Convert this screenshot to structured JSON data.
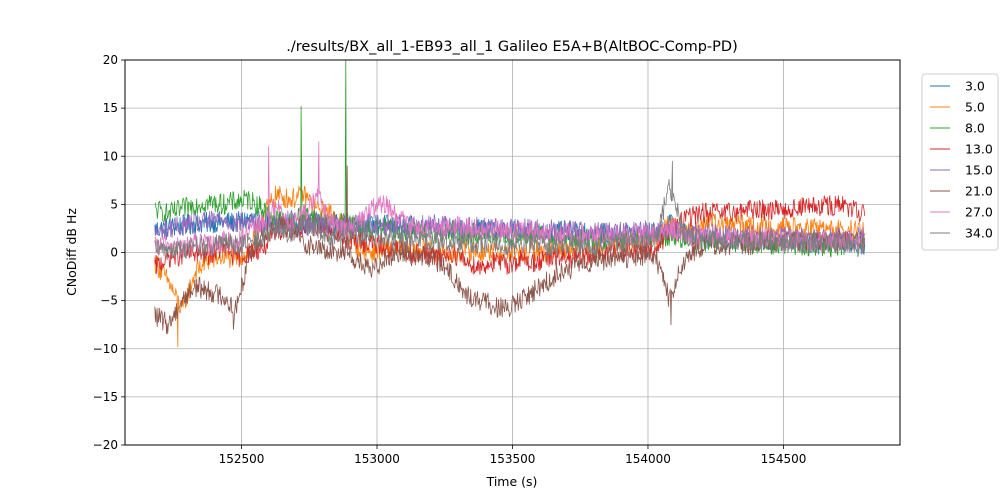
{
  "chart_data": {
    "type": "line",
    "title": "./results/BX_all_1-EB93_all_1 Galileo E5A+B(AltBOC-Comp-PD)",
    "xlabel": "Time (s)",
    "ylabel": "CNoDiff dB Hz",
    "xlim": [
      152070,
      154930
    ],
    "ylim": [
      -20,
      20
    ],
    "x_ticks": [
      152500,
      153000,
      153500,
      154000,
      154500
    ],
    "x_tick_labels": [
      "152500",
      "153000",
      "153500",
      "154000",
      "154500"
    ],
    "y_ticks": [
      -20,
      -15,
      -10,
      -5,
      0,
      5,
      10,
      15,
      20
    ],
    "y_tick_labels": [
      "−20",
      "−15",
      "−10",
      "−5",
      "0",
      "5",
      "10",
      "15",
      "20"
    ],
    "grid": true,
    "legend_position": "outside-right-top",
    "x": [
      152180,
      152230,
      152280,
      152330,
      152380,
      152430,
      152480,
      152530,
      152580,
      152630,
      152680,
      152730,
      152780,
      152830,
      152880,
      152930,
      152980,
      153030,
      153080,
      153130,
      153180,
      153230,
      153280,
      153330,
      153380,
      153430,
      153480,
      153530,
      153580,
      153630,
      153680,
      153730,
      153780,
      153830,
      153880,
      153930,
      153980,
      154030,
      154080,
      154130,
      154180,
      154230,
      154280,
      154330,
      154380,
      154430,
      154480,
      154530,
      154580,
      154630,
      154680,
      154730,
      154800
    ],
    "series": [
      {
        "name": "3.0",
        "color": "#1f77b4",
        "values": [
          2.4,
          2.6,
          2.8,
          3.0,
          3.1,
          3.2,
          3.1,
          3.5,
          3.2,
          2.8,
          3.4,
          2.9,
          3.1,
          2.8,
          3.0,
          2.6,
          2.8,
          2.9,
          2.6,
          2.7,
          2.5,
          2.6,
          2.4,
          2.2,
          2.5,
          2.3,
          2.2,
          2.4,
          2.1,
          2.0,
          2.2,
          2.1,
          1.9,
          2.0,
          1.8,
          1.9,
          2.0,
          2.1,
          3.0,
          2.0,
          1.6,
          1.5,
          1.4,
          1.3,
          1.5,
          1.2,
          1.0,
          1.4,
          1.1,
          0.9,
          1.2,
          1.0,
          0.8
        ]
      },
      {
        "name": "5.0",
        "color": "#ff7f0e",
        "values": [
          -1.0,
          -3.0,
          -6.0,
          -2.0,
          -0.8,
          -0.5,
          -0.6,
          0.0,
          4.0,
          6.0,
          5.5,
          6.0,
          4.5,
          4.0,
          3.0,
          0.5,
          0.0,
          0.5,
          0.3,
          0.2,
          0.5,
          0.0,
          -0.2,
          0.3,
          0.0,
          0.2,
          0.0,
          -0.3,
          0.2,
          0.0,
          0.4,
          0.5,
          0.3,
          0.6,
          0.8,
          1.0,
          1.0,
          1.2,
          3.0,
          1.5,
          3.0,
          3.2,
          2.8,
          3.0,
          2.6,
          2.8,
          2.5,
          2.6,
          2.4,
          2.6,
          2.3,
          2.4,
          2.0
        ]
      },
      {
        "name": "8.0",
        "color": "#2ca02c",
        "values": [
          4.5,
          4.0,
          4.5,
          5.0,
          5.2,
          5.0,
          5.3,
          5.5,
          4.5,
          3.5,
          3.0,
          4.0,
          3.5,
          3.0,
          3.2,
          2.8,
          2.5,
          2.5,
          2.3,
          2.2,
          2.0,
          2.0,
          2.2,
          1.9,
          1.8,
          1.9,
          1.7,
          1.6,
          1.8,
          1.5,
          1.6,
          1.4,
          1.5,
          1.3,
          1.4,
          1.2,
          1.3,
          1.5,
          1.8,
          1.4,
          1.2,
          1.0,
          1.1,
          1.0,
          0.9,
          1.0,
          0.8,
          0.9,
          0.7,
          0.8,
          0.6,
          0.7,
          0.6
        ]
      },
      {
        "name": "13.0",
        "color": "#d62728",
        "values": [
          -1.5,
          -0.5,
          -0.3,
          0.0,
          -0.2,
          0.5,
          -0.5,
          0.0,
          0.5,
          2.0,
          3.0,
          2.5,
          2.8,
          2.0,
          1.5,
          1.2,
          1.0,
          0.5,
          0.3,
          0.0,
          -0.2,
          -0.5,
          0.0,
          -1.0,
          -1.5,
          -1.0,
          -1.2,
          -0.8,
          -1.0,
          -0.7,
          -0.5,
          -0.6,
          -0.4,
          0.0,
          0.2,
          0.0,
          0.4,
          0.3,
          2.0,
          3.5,
          4.0,
          4.2,
          4.0,
          4.3,
          4.5,
          4.4,
          4.6,
          4.5,
          4.8,
          4.7,
          4.9,
          4.8,
          3.8
        ]
      },
      {
        "name": "15.0",
        "color": "#9467bd",
        "values": [
          2.0,
          2.5,
          2.8,
          3.0,
          3.2,
          3.5,
          3.0,
          3.2,
          2.8,
          3.0,
          2.5,
          2.8,
          3.2,
          3.0,
          2.7,
          3.0,
          3.1,
          2.8,
          3.0,
          2.7,
          2.8,
          2.9,
          2.5,
          2.6,
          2.7,
          2.4,
          2.5,
          2.6,
          2.3,
          2.4,
          2.2,
          2.5,
          2.1,
          2.2,
          2.0,
          2.1,
          2.3,
          2.0,
          2.5,
          2.2,
          1.8,
          2.0,
          1.9,
          1.7,
          1.8,
          1.6,
          1.7,
          1.5,
          1.6,
          1.4,
          1.5,
          1.6,
          1.5
        ]
      },
      {
        "name": "21.0",
        "color": "#8c564b",
        "values": [
          -6.5,
          -7.5,
          -5.0,
          -3.5,
          -4.0,
          -4.5,
          -6.0,
          0.0,
          2.0,
          3.0,
          2.5,
          1.0,
          0.5,
          0.0,
          0.3,
          -1.0,
          -2.0,
          -0.5,
          0.0,
          -0.3,
          -0.5,
          -1.0,
          -2.5,
          -4.5,
          -5.0,
          -5.5,
          -6.0,
          -5.0,
          -4.0,
          -3.0,
          -2.0,
          -1.5,
          -1.0,
          -0.8,
          -0.5,
          -0.6,
          -0.3,
          -0.5,
          -5.0,
          -1.0,
          0.5,
          0.8,
          0.6,
          1.0,
          0.8,
          1.1,
          0.9,
          1.2,
          1.0,
          1.3,
          1.1,
          1.2,
          1.0
        ]
      },
      {
        "name": "27.0",
        "color": "#e377c2",
        "values": [
          0.5,
          0.8,
          0.5,
          1.0,
          0.8,
          1.2,
          1.0,
          2.0,
          3.0,
          5.0,
          3.0,
          4.0,
          6.0,
          3.0,
          2.5,
          3.0,
          4.5,
          5.0,
          3.5,
          2.8,
          2.5,
          2.2,
          2.8,
          2.5,
          2.3,
          2.4,
          2.0,
          2.2,
          2.1,
          1.9,
          2.0,
          1.8,
          1.9,
          1.7,
          1.8,
          1.6,
          1.7,
          1.8,
          2.5,
          2.0,
          1.5,
          1.6,
          1.4,
          1.5,
          1.3,
          1.4,
          1.2,
          1.3,
          1.1,
          1.2,
          1.0,
          1.1,
          1.0
        ]
      },
      {
        "name": "34.0",
        "color": "#7f7f7f",
        "values": [
          0.2,
          0.5,
          0.3,
          0.8,
          0.5,
          1.0,
          0.8,
          1.0,
          1.5,
          2.5,
          2.0,
          3.0,
          2.5,
          1.5,
          2.0,
          1.8,
          1.5,
          1.6,
          1.3,
          1.4,
          1.2,
          1.1,
          1.0,
          1.2,
          0.9,
          1.0,
          0.8,
          0.9,
          1.0,
          0.7,
          0.8,
          0.9,
          0.7,
          0.8,
          0.9,
          1.0,
          1.1,
          1.3,
          7.0,
          2.0,
          1.5,
          1.4,
          1.3,
          1.4,
          1.2,
          1.3,
          1.1,
          1.2,
          1.0,
          1.1,
          0.9,
          1.0,
          1.0
        ]
      }
    ],
    "spikes": [
      {
        "series": "8.0",
        "x": 152720,
        "y": 15.2
      },
      {
        "series": "8.0",
        "x": 152885,
        "y": 20.0
      },
      {
        "series": "21.0",
        "x": 152890,
        "y": 9.0
      },
      {
        "series": "27.0",
        "x": 152600,
        "y": 11.0
      },
      {
        "series": "27.0",
        "x": 152785,
        "y": 11.5
      },
      {
        "series": "34.0",
        "x": 154090,
        "y": 9.5
      },
      {
        "series": "5.0",
        "x": 152265,
        "y": -9.8
      },
      {
        "series": "21.0",
        "x": 152470,
        "y": -8.0
      },
      {
        "series": "21.0",
        "x": 154085,
        "y": -7.5
      }
    ]
  }
}
